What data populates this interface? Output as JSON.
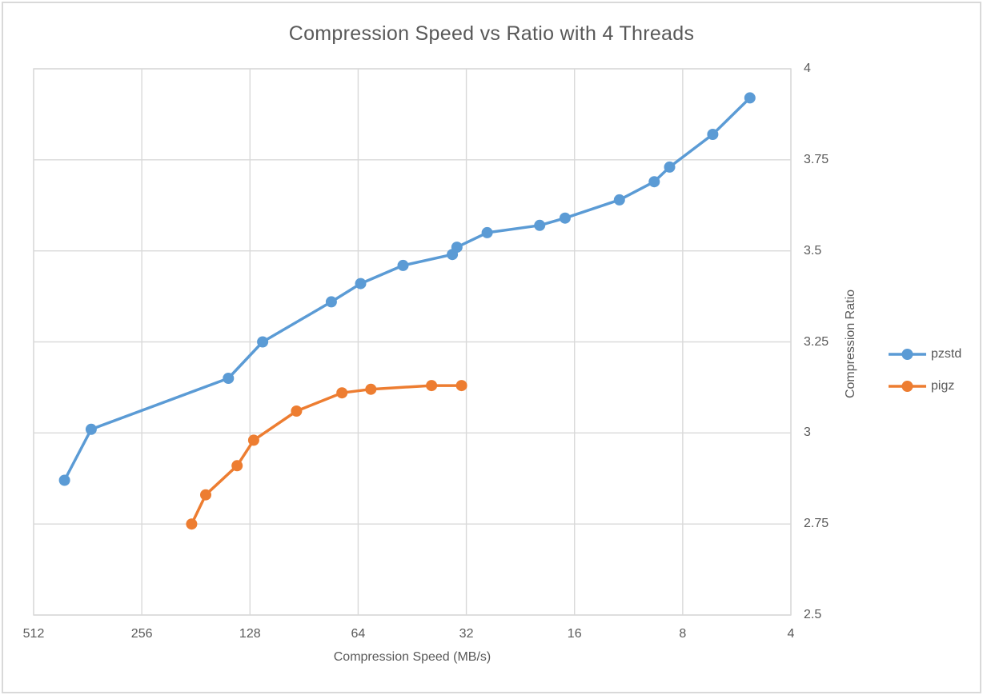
{
  "chart_data": {
    "type": "line",
    "title": "Compression Speed vs Ratio with 4 Threads",
    "xlabel": "Compression Speed (MB/s)",
    "ylabel": "Compression Ratio",
    "x_scale": "log2-reversed",
    "x_range": [
      512,
      4
    ],
    "y_range": [
      2.5,
      4
    ],
    "x_ticks": [
      "512",
      "256",
      "128",
      "64",
      "32",
      "16",
      "8",
      "4"
    ],
    "x_tick_values": [
      512,
      256,
      128,
      64,
      32,
      16,
      8,
      4
    ],
    "y_ticks": [
      "4",
      "3.75",
      "3.5",
      "3.25",
      "3",
      "2.75",
      "2.5"
    ],
    "y_tick_values": [
      4,
      3.75,
      3.5,
      3.25,
      3,
      2.75,
      2.5
    ],
    "grid": true,
    "legend_position": "right",
    "series": [
      {
        "name": "pzstd",
        "color": "#5B9BD5",
        "points": [
          [
            420,
            2.87
          ],
          [
            354,
            3.01
          ],
          [
            147,
            3.15
          ],
          [
            118,
            3.25
          ],
          [
            76,
            3.36
          ],
          [
            63,
            3.41
          ],
          [
            48,
            3.46
          ],
          [
            35,
            3.49
          ],
          [
            34,
            3.51
          ],
          [
            28,
            3.55
          ],
          [
            20,
            3.57
          ],
          [
            17,
            3.59
          ],
          [
            12,
            3.64
          ],
          [
            9.6,
            3.69
          ],
          [
            8.7,
            3.73
          ],
          [
            6.6,
            3.82
          ],
          [
            5.2,
            3.92
          ]
        ]
      },
      {
        "name": "pigz",
        "color": "#ED7D31",
        "points": [
          [
            186,
            2.75
          ],
          [
            170,
            2.83
          ],
          [
            139,
            2.91
          ],
          [
            125,
            2.98
          ],
          [
            95,
            3.06
          ],
          [
            71,
            3.11
          ],
          [
            59,
            3.12
          ],
          [
            40,
            3.13
          ],
          [
            33,
            3.13
          ]
        ]
      }
    ]
  },
  "colors": {
    "background": "#FFFFFF",
    "frame_border": "#D9D9D9",
    "gridline": "#D9D9D9",
    "plot_border": "#D9D9D9",
    "text": "#595959",
    "series_pzstd": "#5B9BD5",
    "series_pigz": "#ED7D31"
  }
}
